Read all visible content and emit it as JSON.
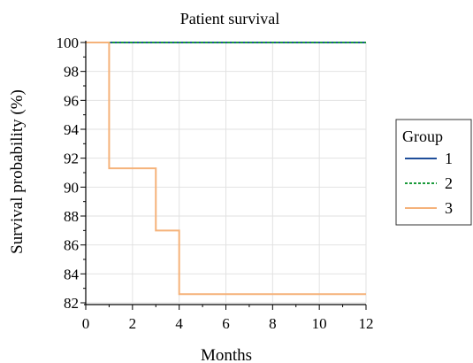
{
  "chart_data": {
    "type": "line",
    "title": "Patient survival",
    "xlabel": "Months",
    "ylabel": "Survival probability (%)",
    "xlim": [
      0,
      12
    ],
    "ylim": [
      82,
      100
    ],
    "x_ticks": [
      0,
      2,
      4,
      6,
      8,
      10,
      12
    ],
    "y_ticks": [
      82,
      84,
      86,
      88,
      90,
      92,
      94,
      96,
      98,
      100
    ],
    "grid": true,
    "step": true,
    "legend": {
      "title": "Group",
      "placement": "right"
    },
    "series": [
      {
        "name": "1",
        "color": "#1f4e9a",
        "dash": "solid",
        "points": [
          [
            0,
            100
          ],
          [
            12,
            100
          ]
        ]
      },
      {
        "name": "2",
        "color": "#1a9a3a",
        "dash": "dotted",
        "points": [
          [
            0,
            100
          ],
          [
            12,
            100
          ]
        ]
      },
      {
        "name": "3",
        "color": "#f5b27a",
        "dash": "solid",
        "points": [
          [
            0,
            100
          ],
          [
            1,
            91.3
          ],
          [
            3,
            87.0
          ],
          [
            4,
            82.6
          ],
          [
            12,
            82.6
          ]
        ]
      }
    ]
  }
}
